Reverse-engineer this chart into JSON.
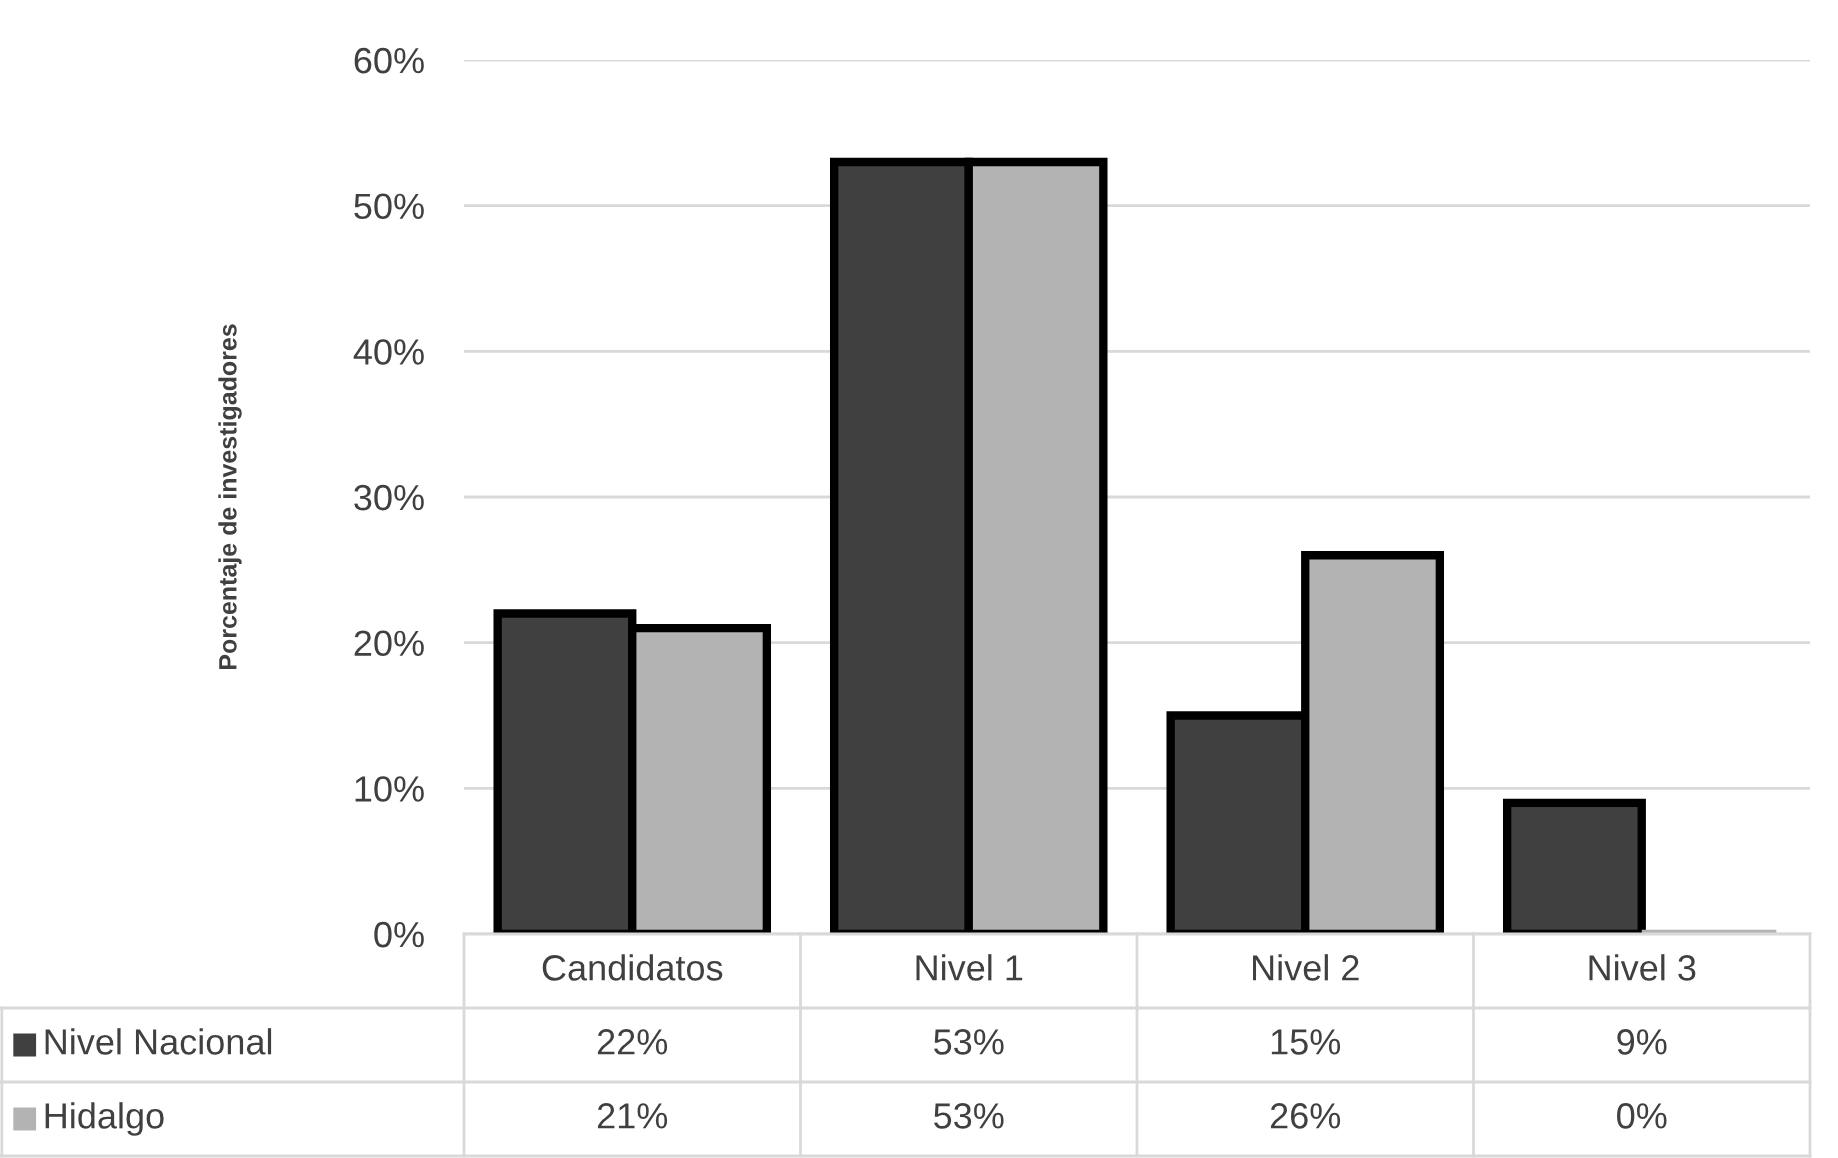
{
  "chart_data": {
    "type": "bar",
    "ylabel": "Porcentaje de investigadores",
    "categories": [
      "Candidatos",
      "Nivel 1",
      "Nivel 2",
      "Nivel 3"
    ],
    "series": [
      {
        "name": "Nivel Nacional",
        "color": "#404040",
        "values": [
          22,
          53,
          15,
          9
        ],
        "value_labels": [
          "22%",
          "53%",
          "15%",
          "9%"
        ]
      },
      {
        "name": "Hidalgo",
        "color": "#b3b3b3",
        "values": [
          21,
          53,
          26,
          0
        ],
        "value_labels": [
          "21%",
          "53%",
          "26%",
          "0%"
        ]
      }
    ],
    "ylim": [
      0,
      60
    ],
    "yticks": [
      {
        "value": 0,
        "label": "0%"
      },
      {
        "value": 10,
        "label": "10%"
      },
      {
        "value": 20,
        "label": "20%"
      },
      {
        "value": 30,
        "label": "30%"
      },
      {
        "value": 40,
        "label": "40%"
      },
      {
        "value": 50,
        "label": "50%"
      },
      {
        "value": 60,
        "label": "60%"
      }
    ],
    "grid": "y",
    "legend": "bottom"
  }
}
